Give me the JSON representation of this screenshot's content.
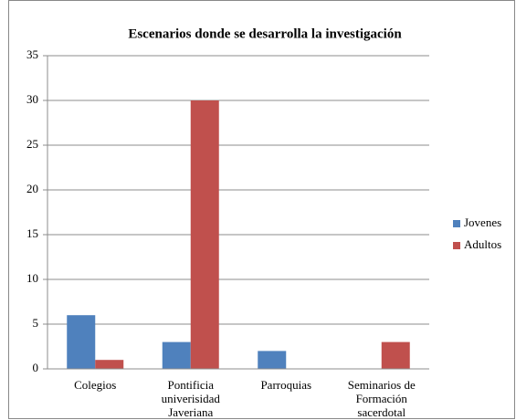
{
  "chart_data": {
    "type": "bar",
    "title": "Escenarios donde se desarrolla la investigación",
    "categories": [
      "Colegios",
      "Pontificia univerisidad Javeriana",
      "Parroquias",
      "Seminarios de Formación sacerdotal"
    ],
    "series": [
      {
        "name": "Jovenes",
        "color": "#4f81bd",
        "values": [
          6,
          3,
          2,
          0
        ]
      },
      {
        "name": "Adultos",
        "color": "#c0504d",
        "values": [
          1,
          30,
          0,
          3
        ]
      }
    ],
    "ylim": [
      0,
      35
    ],
    "yticks": [
      0,
      5,
      10,
      15,
      20,
      25,
      30,
      35
    ],
    "grid": true,
    "legend": "right"
  }
}
